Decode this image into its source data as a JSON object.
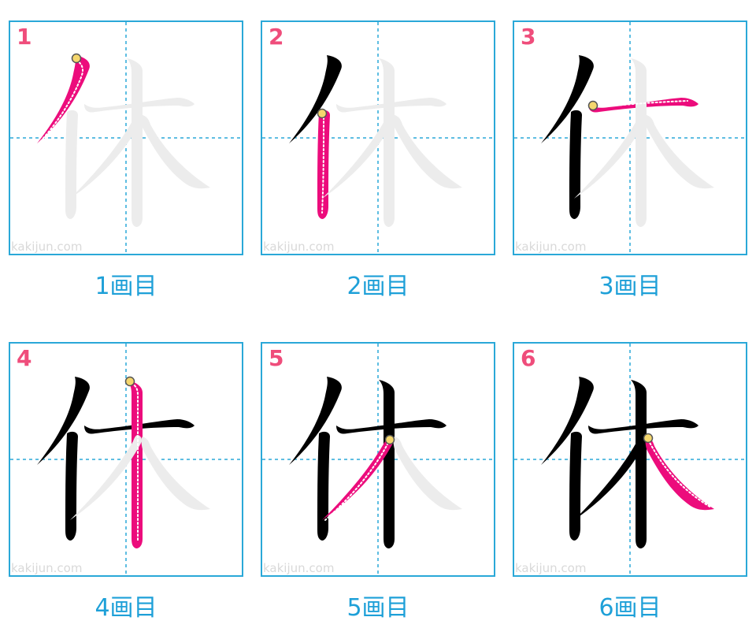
{
  "watermark": "kakijun.com",
  "colors": {
    "border": "#2aa8d8",
    "guide": "#2aa8d8",
    "done": "#000000",
    "current": "#ec0c7c",
    "ghost": "#ececec",
    "number": "#ef4d7b",
    "label": "#1ea0d8"
  },
  "steps": [
    {
      "number": "1",
      "label": "1画目"
    },
    {
      "number": "2",
      "label": "2画目"
    },
    {
      "number": "3",
      "label": "3画目"
    },
    {
      "number": "4",
      "label": "4画目"
    },
    {
      "number": "5",
      "label": "5画目"
    },
    {
      "number": "6",
      "label": "6画目"
    }
  ]
}
